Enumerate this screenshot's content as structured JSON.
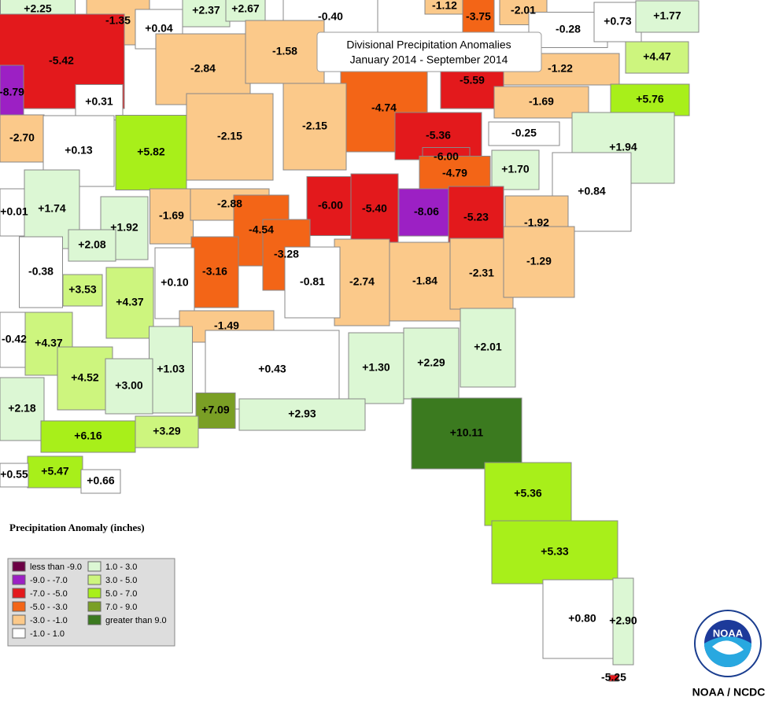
{
  "title": {
    "line1": "Divisional Precipitation Anomalies",
    "line2": "January 2014 - September 2014"
  },
  "divisions": [
    {
      "label": "+2.25",
      "color": "#dcf7d4"
    },
    {
      "label": "-1.35",
      "color": "#fbc98a"
    },
    {
      "label": "+0.04",
      "color": "#ffffff"
    },
    {
      "label": "+2.37",
      "color": "#dcf7d4"
    },
    {
      "label": "+2.67",
      "color": "#dcf7d4"
    },
    {
      "label": "-0.40",
      "color": "#ffffff"
    },
    {
      "label": "-1.12",
      "color": "#fbc98a"
    },
    {
      "label": "-3.75",
      "color": "#f36517"
    },
    {
      "label": "-2.01",
      "color": "#fbc98a"
    },
    {
      "label": "-0.28",
      "color": "#ffffff"
    },
    {
      "label": "+0.73",
      "color": "#ffffff"
    },
    {
      "label": "+1.77",
      "color": "#dcf7d4"
    },
    {
      "label": "-5.42",
      "color": "#e3191c"
    },
    {
      "label": "-2.84",
      "color": "#fbc98a"
    },
    {
      "label": "-1.58",
      "color": "#fbc98a"
    },
    {
      "label": "+4.47",
      "color": "#cdf57e"
    },
    {
      "label": "-1.22",
      "color": "#fbc98a"
    },
    {
      "label": "-8.79",
      "color": "#9c20c4"
    },
    {
      "label": "+0.31",
      "color": "#ffffff"
    },
    {
      "label": "-4.74",
      "color": "#f36517"
    },
    {
      "label": "-5.59",
      "color": "#e3191c"
    },
    {
      "label": "-1.69",
      "color": "#fbc98a"
    },
    {
      "label": "+5.76",
      "color": "#a8ef1a"
    },
    {
      "label": "-2.70",
      "color": "#fbc98a"
    },
    {
      "label": "+0.13",
      "color": "#ffffff"
    },
    {
      "label": "+5.82",
      "color": "#a8ef1a"
    },
    {
      "label": "-2.15",
      "color": "#fbc98a"
    },
    {
      "label": "-2.15",
      "color": "#fbc98a"
    },
    {
      "label": "-5.36",
      "color": "#e3191c"
    },
    {
      "label": "-0.25",
      "color": "#ffffff"
    },
    {
      "label": "+1.94",
      "color": "#dcf7d4"
    },
    {
      "label": "-6.00",
      "color": "#e3191c"
    },
    {
      "label": "-4.79",
      "color": "#f36517"
    },
    {
      "label": "+1.70",
      "color": "#dcf7d4"
    },
    {
      "label": "+0.84",
      "color": "#ffffff"
    },
    {
      "label": "+0.01",
      "color": "#ffffff"
    },
    {
      "label": "+1.74",
      "color": "#dcf7d4"
    },
    {
      "label": "-6.00",
      "color": "#e3191c"
    },
    {
      "label": "-5.40",
      "color": "#e3191c"
    },
    {
      "label": "-8.06",
      "color": "#9c20c4"
    },
    {
      "label": "-5.23",
      "color": "#e3191c"
    },
    {
      "label": "-1.69",
      "color": "#fbc98a"
    },
    {
      "label": "-2.88",
      "color": "#fbc98a"
    },
    {
      "label": "+1.92",
      "color": "#dcf7d4"
    },
    {
      "label": "-1.92",
      "color": "#fbc98a"
    },
    {
      "label": "+2.08",
      "color": "#dcf7d4"
    },
    {
      "label": "-4.54",
      "color": "#f36517"
    },
    {
      "label": "-3.28",
      "color": "#f36517"
    },
    {
      "label": "-0.38",
      "color": "#ffffff"
    },
    {
      "label": "-3.16",
      "color": "#f36517"
    },
    {
      "label": "+0.10",
      "color": "#ffffff"
    },
    {
      "label": "-2.74",
      "color": "#fbc98a"
    },
    {
      "label": "-1.84",
      "color": "#fbc98a"
    },
    {
      "label": "-2.31",
      "color": "#fbc98a"
    },
    {
      "label": "-1.29",
      "color": "#fbc98a"
    },
    {
      "label": "+3.53",
      "color": "#cdf57e"
    },
    {
      "label": "+4.37",
      "color": "#cdf57e"
    },
    {
      "label": "-0.81",
      "color": "#ffffff"
    },
    {
      "label": "-1.49",
      "color": "#fbc98a"
    },
    {
      "label": "-0.42",
      "color": "#ffffff"
    },
    {
      "label": "+4.37",
      "color": "#cdf57e"
    },
    {
      "label": "+1.03",
      "color": "#dcf7d4"
    },
    {
      "label": "+0.43",
      "color": "#ffffff"
    },
    {
      "label": "+1.30",
      "color": "#dcf7d4"
    },
    {
      "label": "+2.29",
      "color": "#dcf7d4"
    },
    {
      "label": "+2.01",
      "color": "#dcf7d4"
    },
    {
      "label": "+4.52",
      "color": "#cdf57e"
    },
    {
      "label": "+3.00",
      "color": "#dcf7d4"
    },
    {
      "label": "+2.18",
      "color": "#dcf7d4"
    },
    {
      "label": "+7.09",
      "color": "#7a9f25"
    },
    {
      "label": "+2.93",
      "color": "#dcf7d4"
    },
    {
      "label": "+6.16",
      "color": "#a8ef1a"
    },
    {
      "label": "+3.29",
      "color": "#cdf57e"
    },
    {
      "label": "+10.11",
      "color": "#3b7a1f"
    },
    {
      "label": "+5.47",
      "color": "#a8ef1a"
    },
    {
      "label": "+0.55",
      "color": "#ffffff"
    },
    {
      "label": "+0.66",
      "color": "#ffffff"
    },
    {
      "label": "+5.36",
      "color": "#a8ef1a"
    },
    {
      "label": "+5.33",
      "color": "#a8ef1a"
    },
    {
      "label": "+0.80",
      "color": "#ffffff"
    },
    {
      "label": "+2.90",
      "color": "#dcf7d4"
    },
    {
      "label": "-5.25",
      "color": "#e3191c"
    }
  ],
  "legend": {
    "title": "Precipitation Anomaly (inches)",
    "items": [
      {
        "label": "less than -9.0",
        "color": "#6b0044"
      },
      {
        "label": "-9.0 - -7.0",
        "color": "#9c20c4"
      },
      {
        "label": "-7.0 - -5.0",
        "color": "#e3191c"
      },
      {
        "label": "-5.0 - -3.0",
        "color": "#f36517"
      },
      {
        "label": "-3.0 - -1.0",
        "color": "#fbc98a"
      },
      {
        "label": "-1.0 - 1.0",
        "color": "#ffffff"
      },
      {
        "label": "1.0 - 3.0",
        "color": "#dcf7d4"
      },
      {
        "label": "3.0 - 5.0",
        "color": "#cdf57e"
      },
      {
        "label": "5.0 - 7.0",
        "color": "#a8ef1a"
      },
      {
        "label": "7.0 - 9.0",
        "color": "#7a9f25"
      },
      {
        "label": "greater than 9.0",
        "color": "#3b7a1f"
      }
    ]
  },
  "logo": "NOAA",
  "credit": "NOAA / NCDC"
}
